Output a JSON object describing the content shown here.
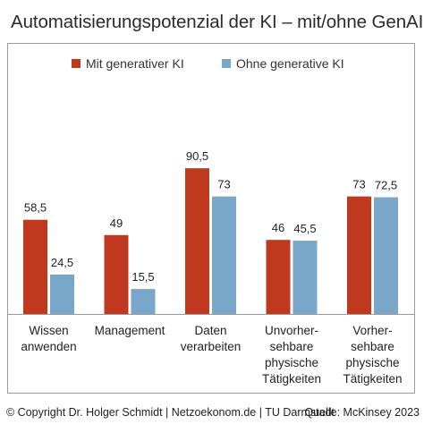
{
  "title": "Automatisierungspotenzial der KI – mit/ohne GenAI",
  "footer": {
    "left": "© Copyright Dr. Holger Schmidt | Netzoekonom.de | TU Darmstadt",
    "right": "Quelle: McKinsey  2023"
  },
  "chart_data": {
    "type": "bar",
    "title": "Automatisierungspotenzial der KI – mit/ohne GenAI",
    "categories": [
      [
        "Wissen",
        "anwenden"
      ],
      [
        "Management"
      ],
      [
        "Daten",
        "verarbeiten"
      ],
      [
        "Unvorher-",
        "sehbare",
        "physische",
        "Tätigkeiten"
      ],
      [
        "Vorher-",
        "sehbare",
        "physische",
        "Tätigkeiten"
      ]
    ],
    "series": [
      {
        "name": "Mit generativer KI",
        "color": "#c0391f",
        "values": [
          58.5,
          49,
          90.5,
          46,
          73
        ],
        "labels": [
          "58,5",
          "49",
          "90,5",
          "46",
          "73"
        ]
      },
      {
        "name": "Ohne generative KI",
        "color": "#78a7c9",
        "values": [
          24.5,
          15.5,
          73,
          45.5,
          72.5
        ],
        "labels": [
          "24,5",
          "15,5",
          "73",
          "45,5",
          "72,5"
        ]
      }
    ],
    "ylim": [
      0,
      100
    ],
    "grid": false,
    "legend_position": "top"
  }
}
